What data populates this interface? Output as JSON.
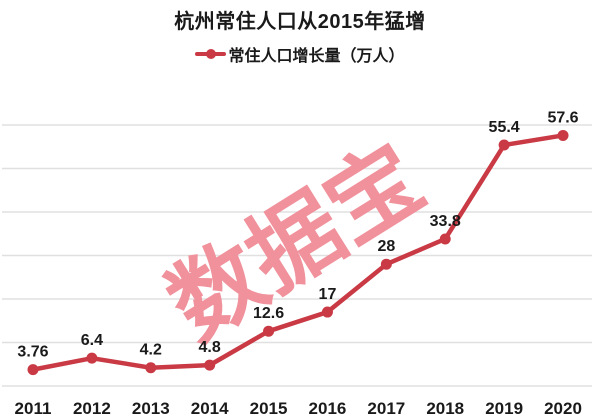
{
  "page": {
    "background": "#ffffff"
  },
  "header": {
    "title": "杭州常住人口从2015年猛增"
  },
  "legend": {
    "label": "常住人口增长量（万人）"
  },
  "watermark": {
    "text": "数据宝",
    "color": "#f0919c",
    "rotation_deg": -32
  },
  "chart_data": {
    "type": "line",
    "title": "杭州常住人口从2015年猛增",
    "categories": [
      "2011",
      "2012",
      "2013",
      "2014",
      "2015",
      "2016",
      "2017",
      "2018",
      "2019",
      "2020"
    ],
    "series": [
      {
        "name": "常住人口增长量（万人）",
        "values": [
          3.76,
          6.4,
          4.2,
          4.8,
          12.6,
          17,
          28,
          33.8,
          55.4,
          57.6
        ]
      }
    ],
    "data_labels": [
      "3.76",
      "6.4",
      "4.2",
      "4.8",
      "12.6",
      "17",
      "28",
      "33.8",
      "55.4",
      "57.6"
    ],
    "xlabel": "",
    "ylabel": "",
    "ylim": [
      0,
      60
    ],
    "grid_step": 10,
    "grid": true,
    "y_tick_labels_visible": false,
    "legend_position": "top-center",
    "line_color": "#c93a45",
    "marker": "circle",
    "grid_color": "#e0e0e0",
    "text_color": "#1a1a1a"
  }
}
